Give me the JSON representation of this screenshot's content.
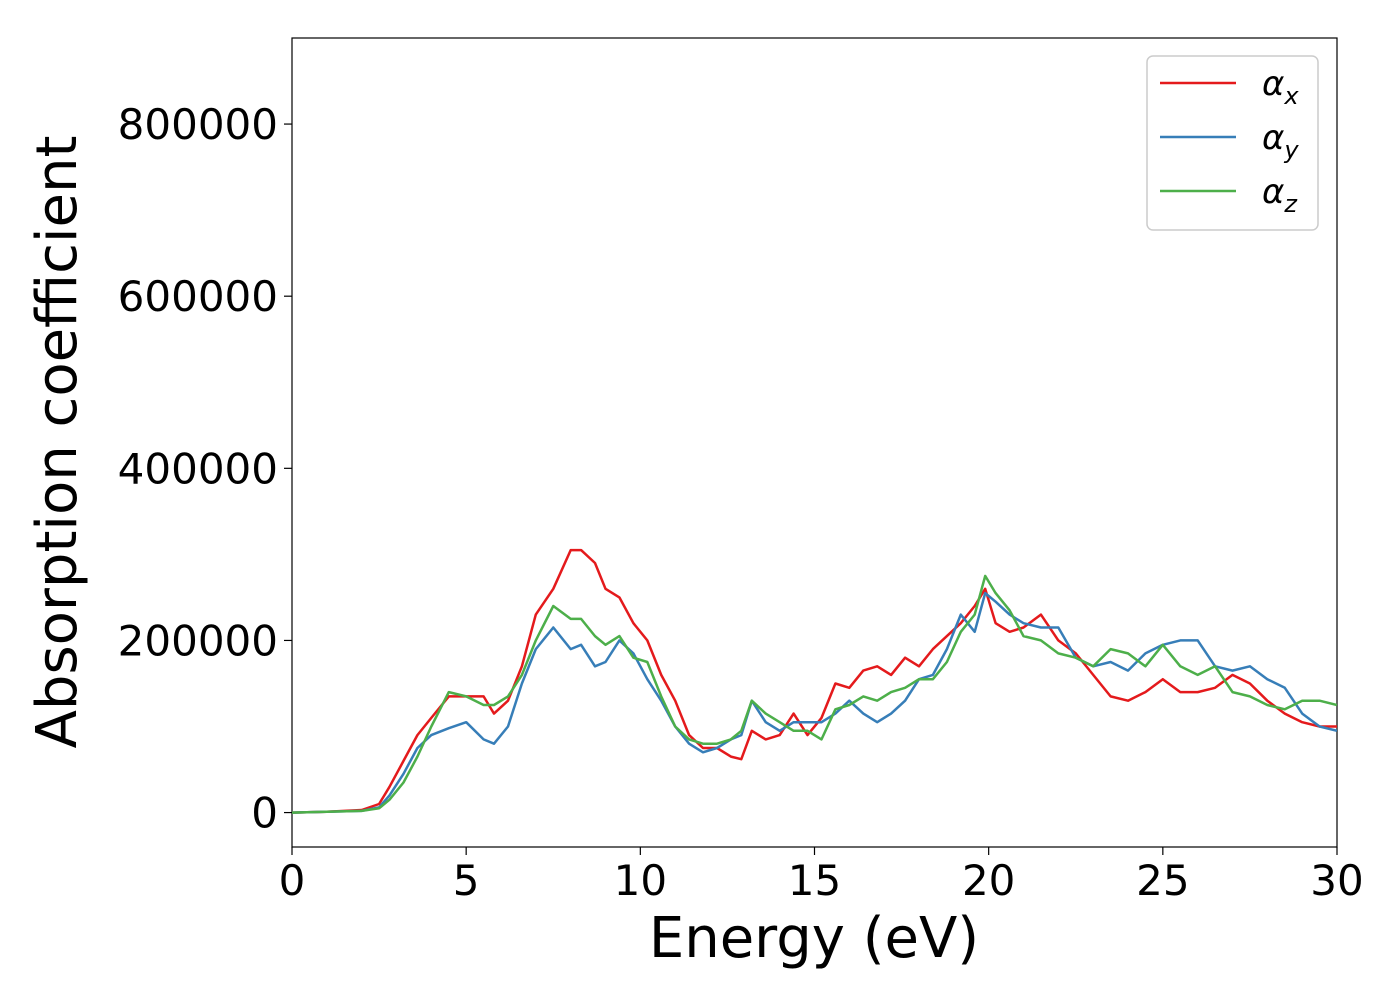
{
  "chart_data": {
    "type": "line",
    "title": "",
    "xlabel": "Energy (eV)",
    "ylabel": "Absorption coefficient",
    "xlim": [
      0,
      30
    ],
    "ylim": [
      -40000,
      900000
    ],
    "xticks": [
      0,
      5,
      10,
      15,
      20,
      25,
      30
    ],
    "yticks": [
      0,
      200000,
      400000,
      600000,
      800000
    ],
    "grid": false,
    "legend_position": "top-right",
    "series": [
      {
        "name": "α",
        "subscript": "x",
        "color": "#e41a1c",
        "x": [
          0,
          1,
          2,
          2.5,
          2.8,
          3.2,
          3.6,
          4.0,
          4.5,
          5.0,
          5.5,
          5.8,
          6.2,
          6.6,
          7.0,
          7.5,
          8.0,
          8.3,
          8.7,
          9.0,
          9.4,
          9.8,
          10.2,
          10.6,
          11.0,
          11.4,
          11.8,
          12.2,
          12.6,
          12.9,
          13.2,
          13.6,
          14.0,
          14.4,
          14.8,
          15.2,
          15.6,
          16.0,
          16.4,
          16.8,
          17.2,
          17.6,
          18.0,
          18.4,
          18.8,
          19.2,
          19.6,
          19.9,
          20.2,
          20.6,
          21.0,
          21.5,
          22.0,
          22.5,
          23.0,
          23.5,
          24.0,
          24.5,
          25.0,
          25.5,
          26.0,
          26.5,
          27.0,
          27.5,
          28.0,
          28.5,
          29.0,
          29.5,
          30.0
        ],
        "y": [
          0,
          1000,
          3000,
          10000,
          30000,
          60000,
          90000,
          110000,
          135000,
          135000,
          135000,
          115000,
          130000,
          170000,
          230000,
          260000,
          305000,
          305000,
          290000,
          260000,
          250000,
          220000,
          200000,
          160000,
          130000,
          90000,
          75000,
          75000,
          65000,
          62000,
          95000,
          85000,
          90000,
          115000,
          90000,
          110000,
          150000,
          145000,
          165000,
          170000,
          160000,
          180000,
          170000,
          190000,
          205000,
          220000,
          240000,
          260000,
          220000,
          210000,
          215000,
          230000,
          200000,
          185000,
          160000,
          135000,
          130000,
          140000,
          155000,
          140000,
          140000,
          145000,
          160000,
          150000,
          130000,
          115000,
          105000,
          100000,
          100000
        ]
      },
      {
        "name": "α",
        "subscript": "y",
        "color": "#377eb8",
        "x": [
          0,
          1,
          2,
          2.5,
          2.8,
          3.2,
          3.6,
          4.0,
          4.5,
          5.0,
          5.5,
          5.8,
          6.2,
          6.6,
          7.0,
          7.5,
          8.0,
          8.3,
          8.7,
          9.0,
          9.4,
          9.8,
          10.2,
          10.6,
          11.0,
          11.4,
          11.8,
          12.2,
          12.6,
          12.9,
          13.2,
          13.6,
          14.0,
          14.4,
          14.8,
          15.2,
          15.6,
          16.0,
          16.4,
          16.8,
          17.2,
          17.6,
          18.0,
          18.4,
          18.8,
          19.2,
          19.6,
          19.9,
          20.2,
          20.6,
          21.0,
          21.5,
          22.0,
          22.5,
          23.0,
          23.5,
          24.0,
          24.5,
          25.0,
          25.5,
          26.0,
          26.5,
          27.0,
          27.5,
          28.0,
          28.5,
          29.0,
          29.5,
          30.0
        ],
        "y": [
          0,
          1000,
          2000,
          6000,
          20000,
          45000,
          75000,
          90000,
          98000,
          105000,
          85000,
          80000,
          100000,
          150000,
          190000,
          215000,
          190000,
          195000,
          170000,
          175000,
          200000,
          185000,
          155000,
          130000,
          100000,
          80000,
          70000,
          75000,
          85000,
          90000,
          130000,
          105000,
          95000,
          105000,
          105000,
          105000,
          115000,
          130000,
          115000,
          105000,
          115000,
          130000,
          155000,
          160000,
          190000,
          230000,
          210000,
          255000,
          245000,
          230000,
          220000,
          215000,
          215000,
          180000,
          170000,
          175000,
          165000,
          185000,
          195000,
          200000,
          200000,
          170000,
          165000,
          170000,
          155000,
          145000,
          115000,
          100000,
          95000
        ]
      },
      {
        "name": "α",
        "subscript": "z",
        "color": "#4daf4a",
        "x": [
          0,
          1,
          2,
          2.5,
          2.8,
          3.2,
          3.6,
          4.0,
          4.5,
          5.0,
          5.5,
          5.8,
          6.2,
          6.6,
          7.0,
          7.5,
          8.0,
          8.3,
          8.7,
          9.0,
          9.4,
          9.8,
          10.2,
          10.6,
          11.0,
          11.4,
          11.8,
          12.2,
          12.6,
          12.9,
          13.2,
          13.6,
          14.0,
          14.4,
          14.8,
          15.2,
          15.6,
          16.0,
          16.4,
          16.8,
          17.2,
          17.6,
          18.0,
          18.4,
          18.8,
          19.2,
          19.6,
          19.9,
          20.2,
          20.6,
          21.0,
          21.5,
          22.0,
          22.5,
          23.0,
          23.5,
          24.0,
          24.5,
          25.0,
          25.5,
          26.0,
          26.5,
          27.0,
          27.5,
          28.0,
          28.5,
          29.0,
          29.5,
          30.0
        ],
        "y": [
          0,
          1000,
          2000,
          5000,
          15000,
          35000,
          65000,
          100000,
          140000,
          135000,
          125000,
          125000,
          135000,
          160000,
          200000,
          240000,
          225000,
          225000,
          205000,
          195000,
          205000,
          180000,
          175000,
          135000,
          100000,
          85000,
          80000,
          80000,
          85000,
          95000,
          130000,
          115000,
          105000,
          95000,
          95000,
          85000,
          120000,
          125000,
          135000,
          130000,
          140000,
          145000,
          155000,
          155000,
          175000,
          210000,
          230000,
          275000,
          255000,
          235000,
          205000,
          200000,
          185000,
          180000,
          170000,
          190000,
          185000,
          170000,
          195000,
          170000,
          160000,
          170000,
          140000,
          135000,
          125000,
          120000,
          130000,
          130000,
          125000
        ]
      }
    ]
  }
}
